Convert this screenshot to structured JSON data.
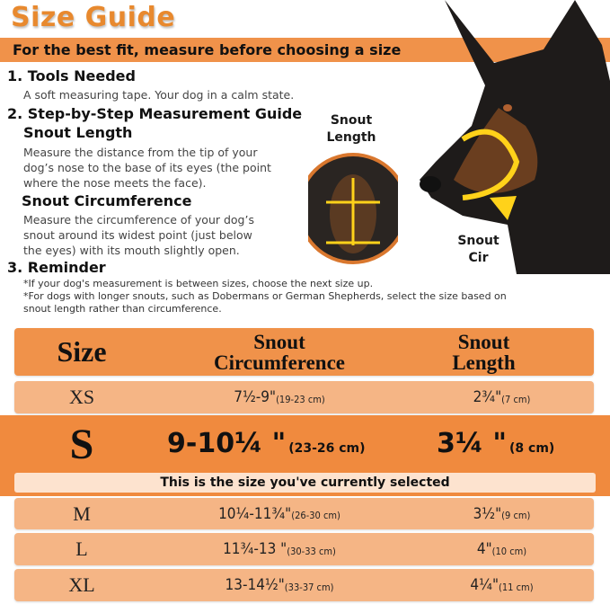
{
  "title": "Size Guide",
  "banner": "For the best fit, measure before choosing a size",
  "sections": {
    "tools_heading": "1. Tools Needed",
    "tools_text": "A soft measuring tape. Your dog in a calm state.",
    "guide_heading": "2. Step-by-Step Measurement Guide",
    "length_heading": "Snout Length",
    "length_text": [
      "Measure the distance from the tip of your",
      "dog’s nose to the base of its eyes (the point",
      "where the nose meets the face)."
    ],
    "circ_heading": "Snout Circumference",
    "circ_text": [
      "Measure the circumference of your dog’s",
      "snout around its widest point (just below",
      "the eyes) with its mouth slightly open."
    ],
    "reminder_heading": "3. Reminder",
    "reminder_notes": [
      "*If your dog's measurement is between sizes, choose the next size up.",
      "*For dogs with longer snouts, such as Dobermans or German Shepherds, select the size based on",
      "snout length rather than circumference."
    ]
  },
  "image_labels": {
    "snout_length": [
      "Snout",
      "Length"
    ],
    "snout_cir": [
      "Snout",
      "Cir"
    ]
  },
  "table": {
    "headers": {
      "size": "Size",
      "circ": [
        "Snout",
        "Circumference"
      ],
      "length": [
        "Snout",
        "Length"
      ]
    },
    "rows": [
      {
        "size": "XS",
        "circ": "7½-9\"",
        "circ_cm": "(19-23 cm)",
        "length": "2¾\"",
        "length_cm": "(7 cm)"
      },
      {
        "size": "S",
        "circ": "9-10¼ \"",
        "circ_cm": "(23-26 cm)",
        "length": "3¼ \"",
        "length_cm": "(8 cm)"
      },
      {
        "size": "M",
        "circ": "10¼-11¾\"",
        "circ_cm": "(26-30 cm)",
        "length": "3½\"",
        "length_cm": "(9 cm)"
      },
      {
        "size": "L",
        "circ": "11¾-13 \"",
        "circ_cm": "(30-33 cm)",
        "length": "4\"",
        "length_cm": "(10 cm)"
      },
      {
        "size": "XL",
        "circ": "13-14½\"",
        "circ_cm": "(33-37 cm)",
        "length": "4¼\"",
        "length_cm": "(11 cm)"
      }
    ],
    "selected_note": "This is the size you've currently selected"
  },
  "colors": {
    "accent": "#e8892e",
    "header": "#f0924a",
    "row": "#f5b585",
    "selected": "#f08a3e"
  }
}
